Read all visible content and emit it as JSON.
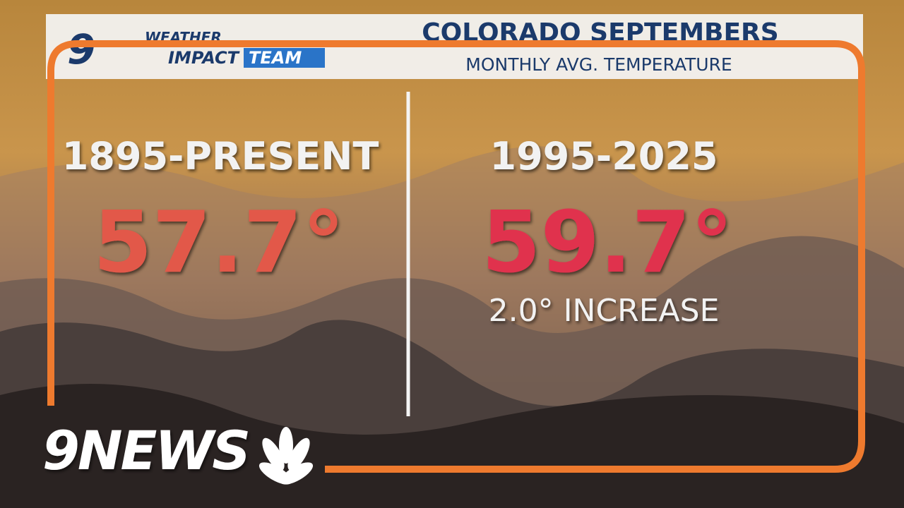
{
  "header": {
    "logo_number": "9",
    "logo_line1": "WEATHER",
    "logo_line2_a": "IMPACT",
    "logo_line2_b": "TEAM",
    "title": "COLORADO SEPTEMBERS",
    "subtitle": "MONTHLY AVG. TEMPERATURE"
  },
  "panels": [
    {
      "period": "1895-PRESENT",
      "value": "57.7°"
    },
    {
      "period": "1995-2025",
      "value": "59.7°",
      "note": "2.0° INCREASE"
    }
  ],
  "footer": {
    "brand": "9NEWS"
  }
}
